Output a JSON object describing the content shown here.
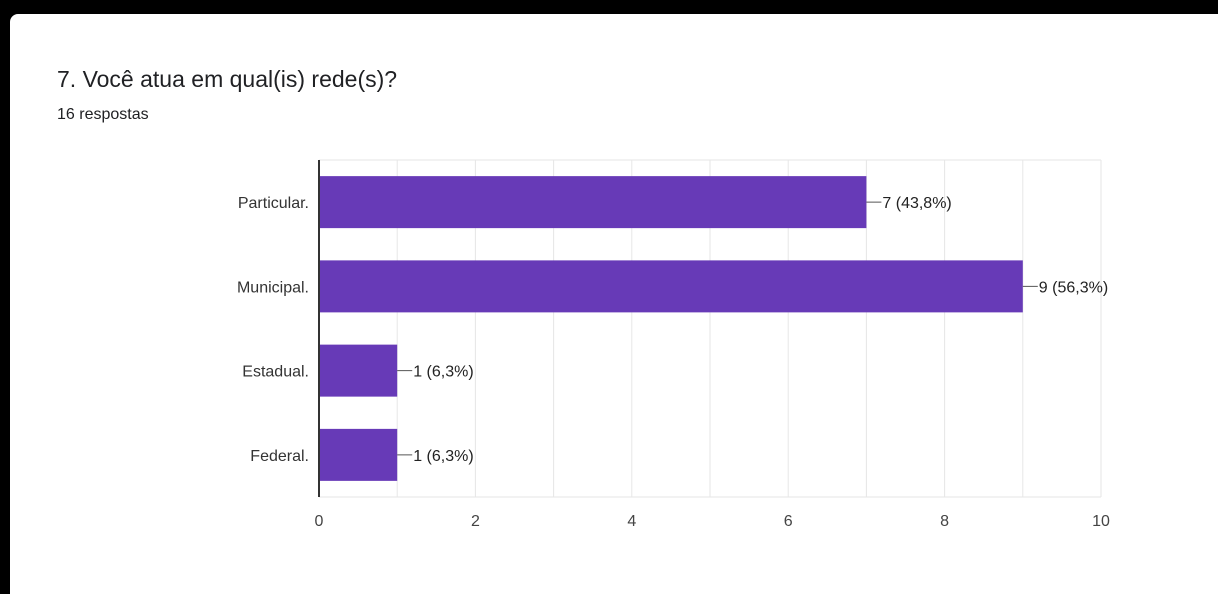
{
  "question": {
    "title": "7. Você atua em qual(is) rede(s)?",
    "responses": "16 respostas"
  },
  "colors": {
    "bar": "#673ab7",
    "grid": "#e6e6e6",
    "axis": "#333333"
  },
  "chart_data": {
    "type": "bar",
    "orientation": "horizontal",
    "categories": [
      "Particular.",
      "Municipal.",
      "Estadual.",
      "Federal."
    ],
    "values": [
      7,
      9,
      1,
      1
    ],
    "data_labels": [
      "7 (43,8%)",
      "9 (56,3%)",
      "1 (6,3%)",
      "1 (6,3%)"
    ],
    "xlim": [
      0,
      10
    ],
    "xticks": [
      0,
      2,
      4,
      6,
      8,
      10
    ],
    "grid": true,
    "title": "7. Você atua em qual(is) rede(s)?",
    "subtitle": "16 respostas"
  }
}
